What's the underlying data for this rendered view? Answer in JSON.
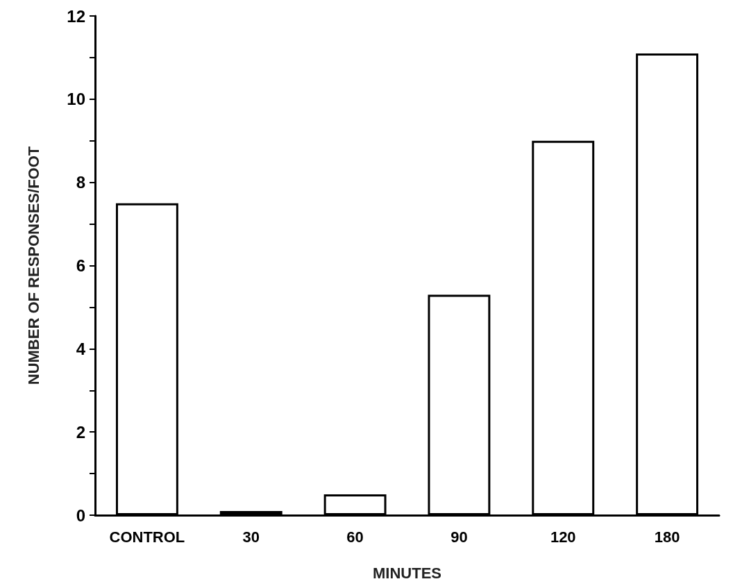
{
  "chart_data": {
    "type": "bar",
    "xlabel": "MINUTES",
    "ylabel": "NUMBER OF RESPONSES/FOOT",
    "categories": [
      "CONTROL",
      "30",
      "60",
      "90",
      "120",
      "180"
    ],
    "values": [
      7.5,
      0.1,
      0.5,
      5.3,
      9.0,
      11.1
    ],
    "color": "#ffffff",
    "ylim": [
      0,
      12
    ],
    "yticks": [
      0,
      {
        "value": 1,
        "label": null
      },
      2,
      {
        "value": 3,
        "label": null
      },
      4,
      {
        "value": 5,
        "label": null
      },
      6,
      {
        "value": 7,
        "label": null
      },
      8,
      {
        "value": 9,
        "label": null
      },
      10,
      {
        "value": 11,
        "label": null
      },
      12
    ],
    "grid": false
  }
}
